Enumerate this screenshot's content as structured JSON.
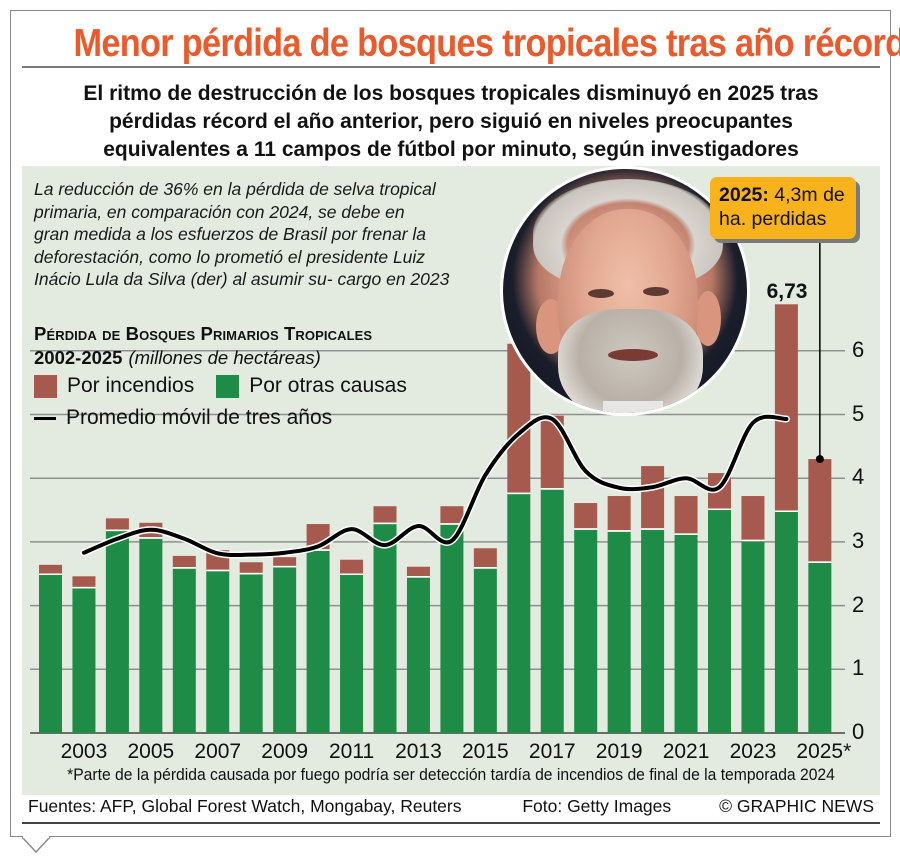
{
  "header": {
    "title": "Menor pérdida de bosques tropicales tras año récord",
    "subtitle_lines": [
      "El ritmo de destrucción de los bosques tropicales disminuyó en 2025 tras",
      "pérdidas récord el año anterior, pero siguió en niveles preocupantes",
      "equivalentes a 11 campos de fútbol por minuto, según investigadores"
    ]
  },
  "intro": {
    "lines": [
      "La reducción de 36% en la pérdida de selva tropical",
      "primaria, en comparación con 2024, se debe en",
      "gran medida a los esfuerzos de Brasil por frenar la",
      "deforestación, como lo prometió el presidente Luiz",
      "Inácio Lula da Silva (der) al asumir su- cargo en 2023"
    ]
  },
  "legend": {
    "title": "Pérdida de Bosques Primarios Tropicales",
    "years": "2002-2025",
    "unit": "(millones de hectáreas)",
    "fire_label": "Por incendios",
    "other_label": "Por otras causas",
    "avg_label": "Promedio móvil de tres años"
  },
  "photo": {
    "icon": "portrait-photo",
    "subject": "Luiz Inácio Lula da Silva"
  },
  "callout": {
    "year": "2025:",
    "text_1": "4,3m de",
    "text_2": "ha. perdidas"
  },
  "peak_label": "6,73",
  "colors": {
    "fire": "#a55a4d",
    "other": "#1e8c47",
    "avg_line": "#000000",
    "panel_bg": "#e3eae0",
    "title": "#ea5a2a",
    "callout_bg": "#f8b21c",
    "grid": "#8f8f8f"
  },
  "axis": {
    "y_ticks": [
      "0",
      "1",
      "2",
      "3",
      "4",
      "5",
      "6"
    ],
    "x_ticks": [
      "2003",
      "2005",
      "2007",
      "2009",
      "2011",
      "2013",
      "2015",
      "2017",
      "2019",
      "2021",
      "2023",
      "2025*"
    ]
  },
  "footnote": "*Parte de la pérdida causada por  fuego podría ser detección tardía de incendios de final de la temporada 2024",
  "sources": {
    "sources_text": "Fuentes: AFP, Global Forest Watch, Mongabay, Reuters",
    "photo_credit": "Foto: Getty Images",
    "copyright": "© GRAPHIC NEWS"
  },
  "chart_data": {
    "type": "bar",
    "stacked": true,
    "title": "Pérdida de Bosques Primarios Tropicales 2002-2025",
    "ylabel": "millones de hectáreas",
    "xlabel": "",
    "ylim": [
      0,
      6.9
    ],
    "grid": true,
    "legend_position": "top-left",
    "categories": [
      "2002",
      "2003",
      "2004",
      "2005",
      "2006",
      "2007",
      "2008",
      "2009",
      "2010",
      "2011",
      "2012",
      "2013",
      "2014",
      "2015",
      "2016",
      "2017",
      "2018",
      "2019",
      "2020",
      "2021",
      "2022",
      "2023",
      "2024",
      "2025"
    ],
    "series": [
      {
        "name": "Por otras causas",
        "values": [
          2.48,
          2.27,
          3.17,
          3.05,
          2.58,
          2.54,
          2.49,
          2.6,
          2.86,
          2.48,
          3.28,
          2.44,
          3.27,
          2.58,
          3.75,
          3.82,
          3.19,
          3.16,
          3.19,
          3.11,
          3.5,
          3.01,
          3.47,
          2.67
        ]
      },
      {
        "name": "Por incendios",
        "values": [
          0.16,
          0.19,
          0.2,
          0.25,
          0.2,
          0.33,
          0.19,
          0.16,
          0.42,
          0.24,
          0.28,
          0.17,
          0.29,
          0.32,
          2.36,
          1.16,
          0.42,
          0.56,
          1.0,
          0.61,
          0.58,
          0.71,
          3.26,
          1.63
        ]
      },
      {
        "name": "Promedio móvil de tres años",
        "type": "line",
        "x": [
          "2003",
          "2004",
          "2005",
          "2006",
          "2007",
          "2008",
          "2009",
          "2010",
          "2011",
          "2012",
          "2013",
          "2014",
          "2015",
          "2016",
          "2017",
          "2018",
          "2019",
          "2020",
          "2021",
          "2022",
          "2023",
          "2024"
        ],
        "values": [
          2.83,
          3.05,
          3.19,
          3.05,
          2.82,
          2.8,
          2.83,
          2.93,
          3.2,
          2.95,
          3.25,
          3.02,
          4.05,
          4.7,
          4.93,
          4.11,
          3.85,
          3.86,
          4.0,
          3.86,
          4.87,
          4.93
        ]
      }
    ],
    "annotations": [
      {
        "x": "2024",
        "text": "6,73"
      },
      {
        "x": "2025",
        "text": "2025: 4,3m de ha. perdidas"
      }
    ]
  }
}
